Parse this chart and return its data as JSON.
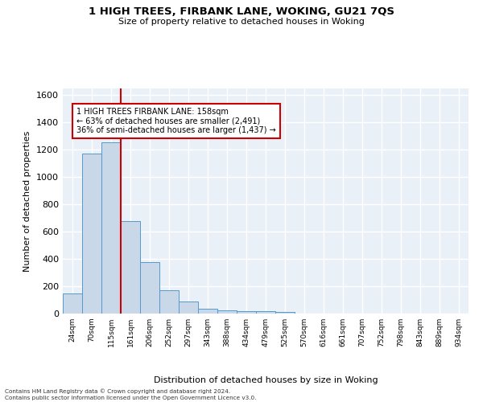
{
  "title": "1 HIGH TREES, FIRBANK LANE, WOKING, GU21 7QS",
  "subtitle": "Size of property relative to detached houses in Woking",
  "xlabel": "Distribution of detached houses by size in Woking",
  "ylabel": "Number of detached properties",
  "categories": [
    "24sqm",
    "70sqm",
    "115sqm",
    "161sqm",
    "206sqm",
    "252sqm",
    "297sqm",
    "343sqm",
    "388sqm",
    "434sqm",
    "479sqm",
    "525sqm",
    "570sqm",
    "616sqm",
    "661sqm",
    "707sqm",
    "752sqm",
    "798sqm",
    "843sqm",
    "889sqm",
    "934sqm"
  ],
  "values": [
    148,
    1170,
    1255,
    680,
    375,
    168,
    88,
    35,
    25,
    20,
    15,
    12,
    0,
    0,
    0,
    0,
    0,
    0,
    0,
    0,
    0
  ],
  "bar_color": "#c8d8e8",
  "bar_edge_color": "#5599cc",
  "vline_color": "#cc0000",
  "annotation_text": "1 HIGH TREES FIRBANK LANE: 158sqm\n← 63% of detached houses are smaller (2,491)\n36% of semi-detached houses are larger (1,437) →",
  "annotation_box_color": "#ffffff",
  "annotation_box_edge_color": "#cc0000",
  "ylim": [
    0,
    1650
  ],
  "yticks": [
    0,
    200,
    400,
    600,
    800,
    1000,
    1200,
    1400,
    1600
  ],
  "background_color": "#eaf0f8",
  "grid_color": "#ffffff",
  "footer_line1": "Contains HM Land Registry data © Crown copyright and database right 2024.",
  "footer_line2": "Contains public sector information licensed under the Open Government Licence v3.0."
}
